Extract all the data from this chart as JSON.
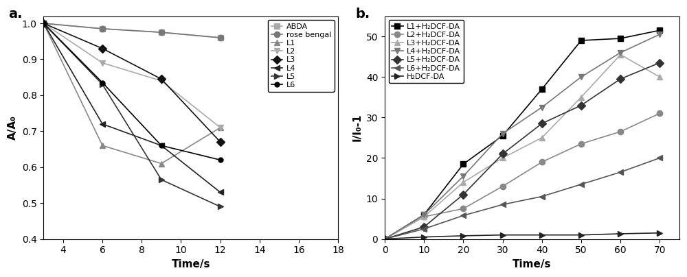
{
  "panel_a": {
    "title": "a.",
    "xlabel": "Time/s",
    "ylabel": "A/A₀",
    "xlim": [
      3,
      18
    ],
    "ylim": [
      0.4,
      1.02
    ],
    "xticks": [
      4,
      6,
      8,
      10,
      12,
      14,
      16,
      18
    ],
    "yticks": [
      0.4,
      0.5,
      0.6,
      0.7,
      0.8,
      0.9,
      1.0
    ],
    "series": [
      {
        "label": "ABDA",
        "x": [
          3,
          6,
          9,
          12
        ],
        "y": [
          1.0,
          0.985,
          0.975,
          0.96
        ],
        "color": "#aaaaaa",
        "marker": "s",
        "markersize": 6
      },
      {
        "label": "rose bengal",
        "x": [
          3,
          6,
          9,
          12
        ],
        "y": [
          1.0,
          0.985,
          0.975,
          0.96
        ],
        "color": "#777777",
        "marker": "o",
        "markersize": 6
      },
      {
        "label": "L1",
        "x": [
          3,
          6,
          9,
          12
        ],
        "y": [
          1.0,
          0.66,
          0.61,
          0.71
        ],
        "color": "#888888",
        "marker": "^",
        "markersize": 6
      },
      {
        "label": "L2",
        "x": [
          3,
          6,
          9,
          12
        ],
        "y": [
          1.0,
          0.89,
          0.84,
          0.71
        ],
        "color": "#aaaaaa",
        "marker": "v",
        "markersize": 6
      },
      {
        "label": "L3",
        "x": [
          3,
          6,
          9,
          12
        ],
        "y": [
          1.0,
          0.93,
          0.845,
          0.67
        ],
        "color": "#111111",
        "marker": "D",
        "markersize": 6
      },
      {
        "label": "L4",
        "x": [
          3,
          6,
          9,
          12
        ],
        "y": [
          1.0,
          0.72,
          0.66,
          0.53
        ],
        "color": "#222222",
        "marker": "<",
        "markersize": 6
      },
      {
        "label": "L5",
        "x": [
          3,
          6,
          9,
          12
        ],
        "y": [
          1.0,
          0.83,
          0.565,
          0.49
        ],
        "color": "#333333",
        "marker": ">",
        "markersize": 6
      },
      {
        "label": "L6",
        "x": [
          3,
          6,
          9,
          12
        ],
        "y": [
          1.0,
          0.835,
          0.66,
          0.62
        ],
        "color": "#000000",
        "marker": "o",
        "markersize": 5
      }
    ]
  },
  "panel_b": {
    "title": "b.",
    "xlabel": "Time/s",
    "ylabel": "I/I₀-1",
    "xlim": [
      0,
      75
    ],
    "ylim": [
      0,
      55
    ],
    "xticks": [
      0,
      10,
      20,
      30,
      40,
      50,
      60,
      70
    ],
    "yticks": [
      0,
      10,
      20,
      30,
      40,
      50
    ],
    "series": [
      {
        "label": "L1+H₂DCF-DA",
        "x": [
          0,
          10,
          20,
          30,
          40,
          50,
          60,
          70
        ],
        "y": [
          0,
          6.0,
          18.5,
          25.5,
          37.0,
          49.0,
          49.5,
          51.5
        ],
        "color": "#000000",
        "marker": "s",
        "markersize": 6
      },
      {
        "label": "L2+H₂DCF-DA",
        "x": [
          0,
          10,
          20,
          30,
          40,
          50,
          60,
          70
        ],
        "y": [
          0,
          5.5,
          7.5,
          13.0,
          19.0,
          23.5,
          26.5,
          31.0
        ],
        "color": "#888888",
        "marker": "o",
        "markersize": 6
      },
      {
        "label": "L3+H₂DCF-DA",
        "x": [
          0,
          10,
          20,
          30,
          40,
          50,
          60,
          70
        ],
        "y": [
          0,
          5.5,
          14.0,
          20.0,
          25.0,
          35.0,
          45.5,
          40.0
        ],
        "color": "#aaaaaa",
        "marker": "^",
        "markersize": 6
      },
      {
        "label": "L4+H₂DCF-DA",
        "x": [
          0,
          10,
          20,
          30,
          40,
          50,
          60,
          70
        ],
        "y": [
          0,
          6.0,
          15.5,
          26.0,
          32.5,
          40.0,
          46.0,
          50.5
        ],
        "color": "#777777",
        "marker": "v",
        "markersize": 6
      },
      {
        "label": "L5+H₂DCF-DA",
        "x": [
          0,
          10,
          20,
          30,
          40,
          50,
          60,
          70
        ],
        "y": [
          0,
          3.0,
          11.0,
          21.0,
          28.5,
          33.0,
          39.5,
          43.5
        ],
        "color": "#333333",
        "marker": "D",
        "markersize": 6
      },
      {
        "label": "L6+H₂DCF-DA",
        "x": [
          0,
          10,
          20,
          30,
          40,
          50,
          60,
          70
        ],
        "y": [
          0,
          2.5,
          5.8,
          8.5,
          10.5,
          13.5,
          16.5,
          20.0
        ],
        "color": "#555555",
        "marker": "<",
        "markersize": 6
      },
      {
        "label": "H₂DCF-DA",
        "x": [
          0,
          10,
          20,
          30,
          40,
          50,
          60,
          70
        ],
        "y": [
          0,
          0.5,
          0.8,
          1.0,
          1.0,
          1.0,
          1.3,
          1.5
        ],
        "color": "#222222",
        "marker": ">",
        "markersize": 6
      }
    ]
  }
}
